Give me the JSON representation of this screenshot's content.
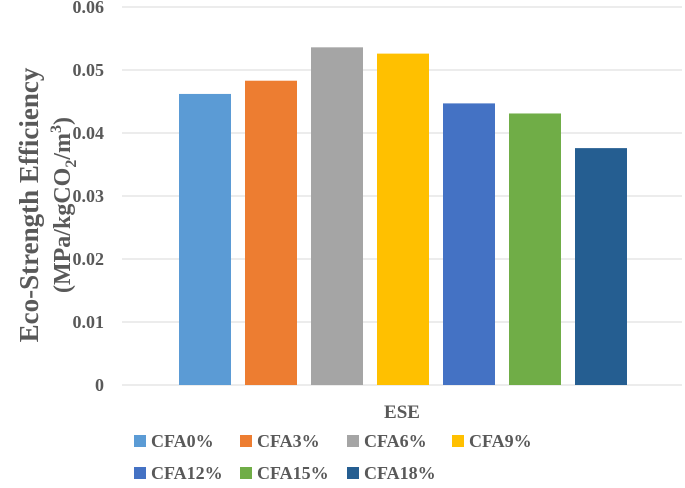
{
  "chart_data": {
    "type": "bar",
    "categories": [
      "ESE"
    ],
    "series": [
      {
        "name": "CFA0%",
        "values": [
          0.0462
        ],
        "color": "#5B9BD5"
      },
      {
        "name": "CFA3%",
        "values": [
          0.0483
        ],
        "color": "#ED7D31"
      },
      {
        "name": "CFA6%",
        "values": [
          0.0536
        ],
        "color": "#A5A5A5"
      },
      {
        "name": "CFA9%",
        "values": [
          0.0526
        ],
        "color": "#FFC000"
      },
      {
        "name": "CFA12%",
        "values": [
          0.0447
        ],
        "color": "#4472C4"
      },
      {
        "name": "CFA15%",
        "values": [
          0.0431
        ],
        "color": "#70AD47"
      },
      {
        "name": "CFA18%",
        "values": [
          0.0376
        ],
        "color": "#255E91"
      }
    ],
    "title": "",
    "xlabel": "ESE",
    "ylabel_line1": "Eco-Strength Efficiency",
    "ylabel_line2_prefix": "(MPa/kgCO",
    "ylabel_line2_sub": "2",
    "ylabel_line2_mid": "/m",
    "ylabel_line2_sup": "3",
    "ylabel_line2_suffix": ")",
    "ylim": [
      0,
      0.06
    ],
    "yticks": [
      0,
      0.01,
      0.02,
      0.03,
      0.04,
      0.05,
      0.06
    ],
    "ytick_labels": [
      "0",
      "0.01",
      "0.02",
      "0.03",
      "0.04",
      "0.05",
      "0.06"
    ],
    "grid": true,
    "legend_position": "bottom"
  }
}
